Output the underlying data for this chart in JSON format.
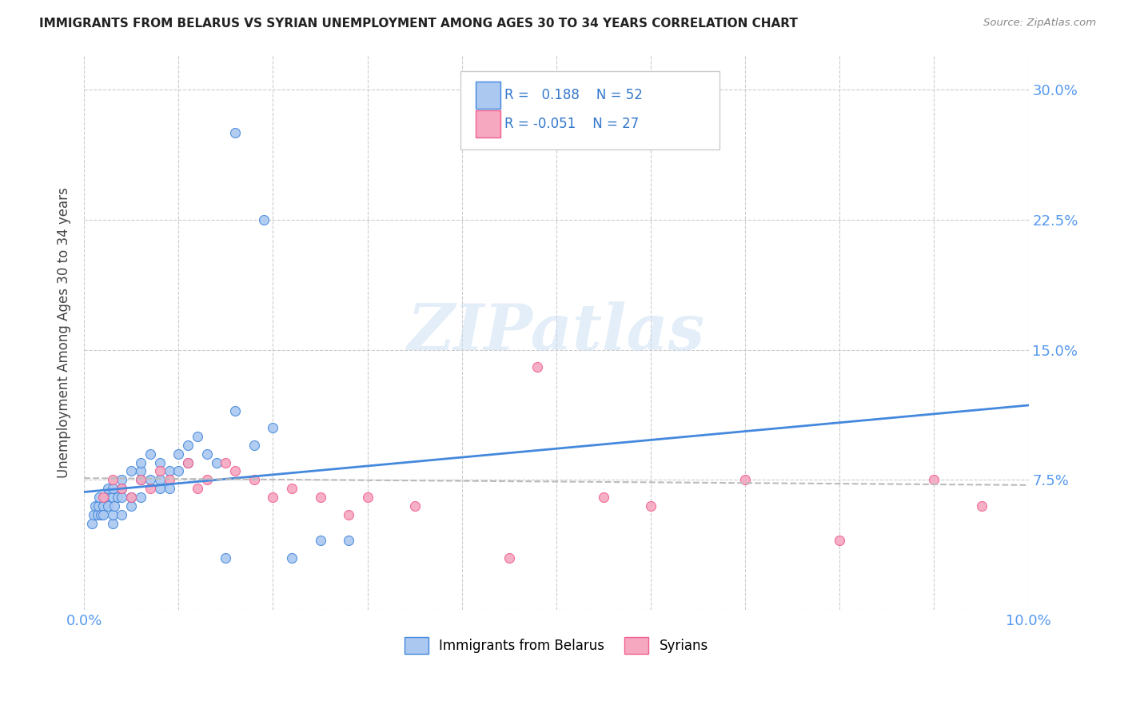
{
  "title": "IMMIGRANTS FROM BELARUS VS SYRIAN UNEMPLOYMENT AMONG AGES 30 TO 34 YEARS CORRELATION CHART",
  "source": "Source: ZipAtlas.com",
  "ylabel": "Unemployment Among Ages 30 to 34 years",
  "xlim": [
    0.0,
    0.1
  ],
  "ylim": [
    0.0,
    0.32
  ],
  "xticks": [
    0.0,
    0.01,
    0.02,
    0.03,
    0.04,
    0.05,
    0.06,
    0.07,
    0.08,
    0.09,
    0.1
  ],
  "xticklabels": [
    "0.0%",
    "",
    "",
    "",
    "",
    "",
    "",
    "",
    "",
    "",
    "10.0%"
  ],
  "yticks": [
    0.0,
    0.075,
    0.15,
    0.225,
    0.3
  ],
  "yticklabels": [
    "",
    "7.5%",
    "15.0%",
    "22.5%",
    "30.0%"
  ],
  "color_belarus": "#aac8f0",
  "color_syrians": "#f5a8c0",
  "color_line_belarus": "#4488dd",
  "color_line_syrians": "#f06090",
  "color_regression_belarus": "#4488dd",
  "color_regression_syrians": "#bbbbbb",
  "belarus_line_x0": 0.0,
  "belarus_line_y0": 0.068,
  "belarus_line_x1": 0.1,
  "belarus_line_y1": 0.118,
  "syrians_line_x0": 0.0,
  "syrians_line_y0": 0.076,
  "syrians_line_x1": 0.1,
  "syrians_line_y1": 0.072,
  "scatter_belarus_x": [
    0.0008,
    0.001,
    0.0012,
    0.0014,
    0.0015,
    0.0016,
    0.0018,
    0.002,
    0.002,
    0.0022,
    0.0025,
    0.0025,
    0.003,
    0.003,
    0.003,
    0.003,
    0.0032,
    0.0035,
    0.004,
    0.004,
    0.004,
    0.004,
    0.005,
    0.005,
    0.005,
    0.006,
    0.006,
    0.006,
    0.006,
    0.007,
    0.007,
    0.008,
    0.008,
    0.008,
    0.009,
    0.009,
    0.01,
    0.01,
    0.011,
    0.011,
    0.012,
    0.013,
    0.014,
    0.015,
    0.016,
    0.016,
    0.018,
    0.019,
    0.02,
    0.022,
    0.025,
    0.028
  ],
  "scatter_belarus_y": [
    0.05,
    0.055,
    0.06,
    0.055,
    0.06,
    0.065,
    0.055,
    0.06,
    0.055,
    0.065,
    0.06,
    0.07,
    0.05,
    0.055,
    0.065,
    0.07,
    0.06,
    0.065,
    0.055,
    0.065,
    0.07,
    0.075,
    0.06,
    0.065,
    0.08,
    0.065,
    0.075,
    0.08,
    0.085,
    0.075,
    0.09,
    0.07,
    0.075,
    0.085,
    0.07,
    0.08,
    0.08,
    0.09,
    0.095,
    0.085,
    0.1,
    0.09,
    0.085,
    0.03,
    0.275,
    0.115,
    0.095,
    0.225,
    0.105,
    0.03,
    0.04,
    0.04
  ],
  "scatter_syrians_x": [
    0.002,
    0.003,
    0.004,
    0.005,
    0.006,
    0.007,
    0.008,
    0.009,
    0.011,
    0.012,
    0.013,
    0.015,
    0.016,
    0.018,
    0.02,
    0.022,
    0.025,
    0.028,
    0.03,
    0.035,
    0.045,
    0.048,
    0.055,
    0.06,
    0.07,
    0.08,
    0.09,
    0.095
  ],
  "scatter_syrians_y": [
    0.065,
    0.075,
    0.07,
    0.065,
    0.075,
    0.07,
    0.08,
    0.075,
    0.085,
    0.07,
    0.075,
    0.085,
    0.08,
    0.075,
    0.065,
    0.07,
    0.065,
    0.055,
    0.065,
    0.06,
    0.03,
    0.14,
    0.065,
    0.06,
    0.075,
    0.04,
    0.075,
    0.06
  ]
}
